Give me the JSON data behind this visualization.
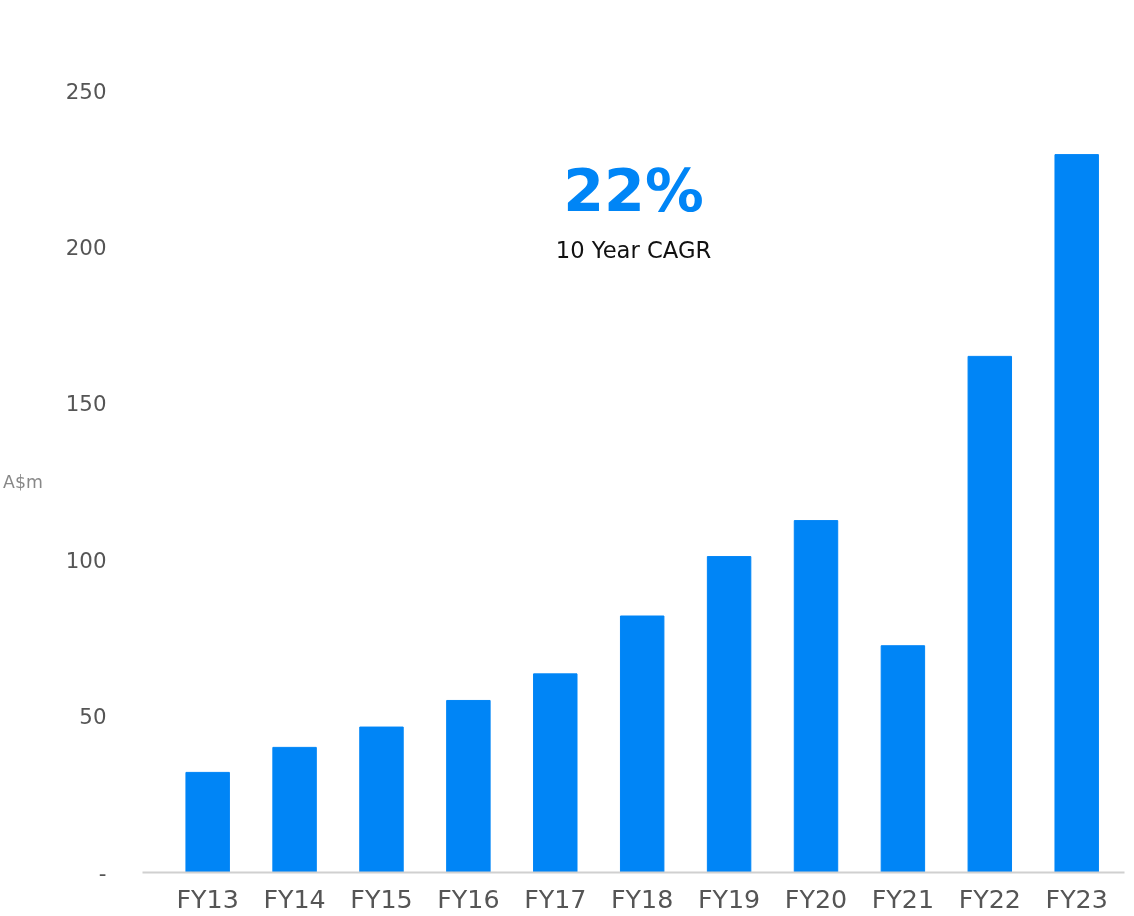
{
  "chart_data": {
    "type": "bar",
    "ylabel": "A$m",
    "categories": [
      "FY13",
      "FY14",
      "FY15",
      "FY16",
      "FY17",
      "FY18",
      "FY19",
      "FY20",
      "FY21",
      "FY22",
      "FY23"
    ],
    "values": [
      32,
      40,
      46.5,
      55,
      63.5,
      82,
      101,
      112.5,
      72.5,
      165,
      229.5
    ],
    "color": "#0085f6",
    "ylim": [
      0,
      250
    ],
    "yticks": [
      {
        "value": 0,
        "label": "-"
      },
      50,
      100,
      150,
      200,
      250
    ],
    "grid": false,
    "annotations": [
      "22%",
      "10 Year CAGR"
    ]
  }
}
